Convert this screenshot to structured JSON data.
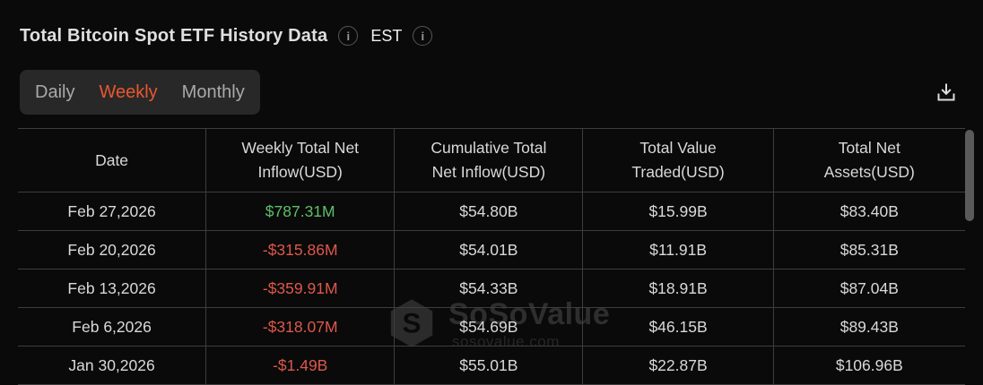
{
  "header": {
    "title": "Total Bitcoin Spot ETF History Data",
    "timezone": "EST"
  },
  "icons": {
    "info_glyph": "i"
  },
  "tabs": {
    "items": [
      {
        "label": "Daily",
        "active": false
      },
      {
        "label": "Weekly",
        "active": true
      },
      {
        "label": "Monthly",
        "active": false
      }
    ]
  },
  "colors": {
    "accent_active_tab": "#e9572f",
    "positive": "#5fbe6a",
    "negative": "#dd584a"
  },
  "table": {
    "columns": [
      "Date",
      "Weekly Total Net Inflow(USD)",
      "Cumulative Total Net Inflow(USD)",
      "Total Value Traded(USD)",
      "Total Net Assets(USD)"
    ],
    "rows": [
      {
        "date": "Feb 27,2026",
        "inflow": "$787.31M",
        "inflow_color": "#5fbe6a",
        "cumulative": "$54.80B",
        "traded": "$15.99B",
        "assets": "$83.40B"
      },
      {
        "date": "Feb 20,2026",
        "inflow": "-$315.86M",
        "inflow_color": "#dd584a",
        "cumulative": "$54.01B",
        "traded": "$11.91B",
        "assets": "$85.31B"
      },
      {
        "date": "Feb 13,2026",
        "inflow": "-$359.91M",
        "inflow_color": "#dd584a",
        "cumulative": "$54.33B",
        "traded": "$18.91B",
        "assets": "$87.04B"
      },
      {
        "date": "Feb 6,2026",
        "inflow": "-$318.07M",
        "inflow_color": "#dd584a",
        "cumulative": "$54.69B",
        "traded": "$46.15B",
        "assets": "$89.43B"
      },
      {
        "date": "Jan 30,2026",
        "inflow": "-$1.49B",
        "inflow_color": "#dd584a",
        "cumulative": "$55.01B",
        "traded": "$22.87B",
        "assets": "$106.96B"
      }
    ]
  },
  "watermark": {
    "name": "SoSoValue",
    "domain": "sosovalue.com"
  }
}
